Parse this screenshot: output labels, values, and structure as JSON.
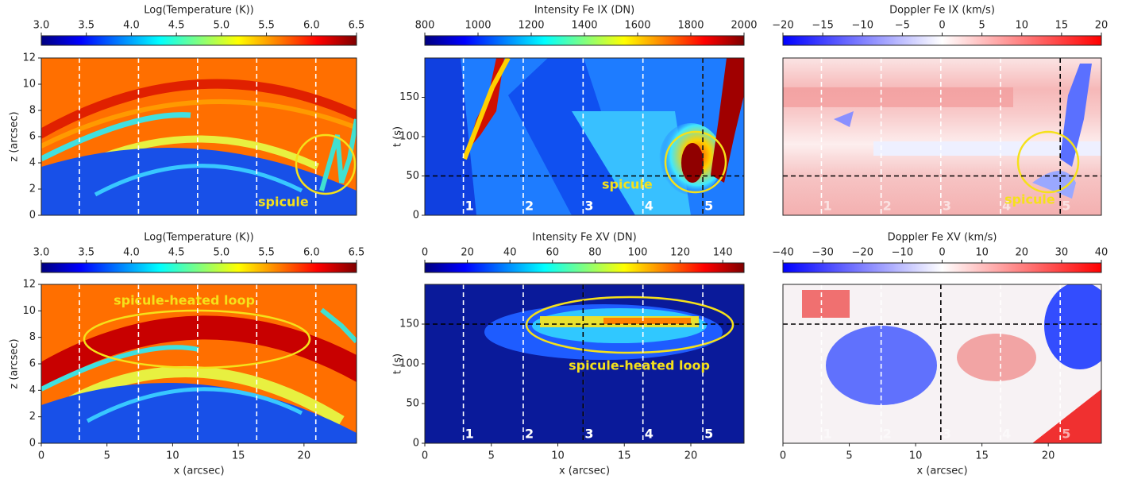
{
  "chart_data": [
    {
      "type": "heatmap",
      "colorbar": {
        "label": "Log(Temperature (K))",
        "colormap": "jet",
        "lim": [
          3,
          6.5
        ],
        "ticks": [
          {
            "value": 3,
            "label": "3.0"
          },
          3.5,
          {
            "value": 4,
            "label": "4.0"
          },
          4.5,
          {
            "value": 5,
            "label": "5.0"
          },
          5.5,
          {
            "value": 6,
            "label": "6.0"
          },
          6.5
        ]
      },
      "xlim": [
        0,
        24
      ],
      "ylim": [
        0,
        12
      ],
      "yticks": [
        0,
        2,
        4,
        6,
        8,
        10,
        12
      ],
      "ylabel": "z (arcsec)",
      "slits": [
        2.9,
        7.4,
        11.9,
        16.4,
        20.9
      ],
      "annotation": "spicule"
    },
    {
      "type": "heatmap",
      "colorbar": {
        "label": "Intensity Fe IX (DN)",
        "colormap": "jet",
        "lim": [
          800,
          2000
        ],
        "ticks": [
          800,
          1000,
          1200,
          1400,
          1600,
          1800,
          2000
        ]
      },
      "xlim": [
        0,
        24
      ],
      "ylim": [
        0,
        200
      ],
      "yticks": [
        0,
        50,
        100,
        150
      ],
      "ylabel": "t (s)",
      "slits": [
        2.9,
        7.4,
        11.9,
        16.4,
        20.9
      ],
      "slit_labels": [
        "1",
        "2",
        "3",
        "4",
        "5"
      ],
      "hline": 50,
      "vline": 20.9,
      "annotation": "spicule"
    },
    {
      "type": "heatmap",
      "colorbar": {
        "label": "Doppler Fe IX (km/s)",
        "colormap": "bwr",
        "lim": [
          -20,
          20
        ],
        "ticks": [
          {
            "value": -20,
            "label": "−20"
          },
          {
            "value": -15,
            "label": "−15"
          },
          {
            "value": -10,
            "label": "−10"
          },
          {
            "value": -5,
            "label": "−5"
          },
          0,
          5,
          10,
          15,
          20
        ]
      },
      "xlim": [
        0,
        24
      ],
      "ylim": [
        0,
        200
      ],
      "slits": [
        2.9,
        7.4,
        11.9,
        16.4,
        20.9
      ],
      "slit_labels": [
        "1",
        "2",
        "3",
        "4",
        "5"
      ],
      "hline": 50,
      "vline": 20.9,
      "annotation": "spicule"
    },
    {
      "type": "heatmap",
      "colorbar": {
        "label": "Log(Temperature (K))",
        "colormap": "jet",
        "lim": [
          3,
          6.5
        ],
        "ticks": [
          {
            "value": 3,
            "label": "3.0"
          },
          3.5,
          {
            "value": 4,
            "label": "4.0"
          },
          4.5,
          {
            "value": 5,
            "label": "5.0"
          },
          5.5,
          {
            "value": 6,
            "label": "6.0"
          },
          6.5
        ]
      },
      "xlim": [
        0,
        24
      ],
      "ylim": [
        0,
        12
      ],
      "xticks": [
        0,
        5,
        10,
        15,
        20
      ],
      "yticks": [
        0,
        2,
        4,
        6,
        8,
        10,
        12
      ],
      "xlabel": "x (arcsec)",
      "ylabel": "z (arcsec)",
      "slits": [
        2.9,
        7.4,
        11.9,
        16.4,
        20.9
      ],
      "annotation": "spicule-heated loop"
    },
    {
      "type": "heatmap",
      "colorbar": {
        "label": "Intensity Fe XV (DN)",
        "colormap": "jet",
        "lim": [
          0,
          150
        ],
        "ticks": [
          0,
          20,
          40,
          60,
          80,
          100,
          120,
          140
        ]
      },
      "xlim": [
        0,
        24
      ],
      "ylim": [
        0,
        200
      ],
      "xticks": [
        0,
        5,
        10,
        15,
        20
      ],
      "yticks": [
        0,
        50,
        100,
        150
      ],
      "xlabel": "x (arcsec)",
      "ylabel": "t (s)",
      "slits": [
        2.9,
        7.4,
        11.9,
        16.4,
        20.9
      ],
      "slit_labels": [
        "1",
        "2",
        "3",
        "4",
        "5"
      ],
      "hline": 150,
      "vline": 11.9,
      "annotation": "spicule-heated loop"
    },
    {
      "type": "heatmap",
      "colorbar": {
        "label": "Doppler Fe XV (km/s)",
        "colormap": "bwr",
        "lim": [
          -40,
          40
        ],
        "ticks": [
          {
            "value": -40,
            "label": "−40"
          },
          {
            "value": -30,
            "label": "−30"
          },
          {
            "value": -20,
            "label": "−20"
          },
          {
            "value": -10,
            "label": "−10"
          },
          0,
          10,
          20,
          30,
          40
        ]
      },
      "xlim": [
        0,
        24
      ],
      "ylim": [
        0,
        200
      ],
      "xticks": [
        0,
        5,
        10,
        15,
        20
      ],
      "xlabel": "x (arcsec)",
      "slits": [
        2.9,
        7.4,
        11.9,
        16.4,
        20.9
      ],
      "slit_labels": [
        "1",
        "2",
        "3",
        "4",
        "5"
      ],
      "hline": 150,
      "vline": 11.9
    }
  ]
}
